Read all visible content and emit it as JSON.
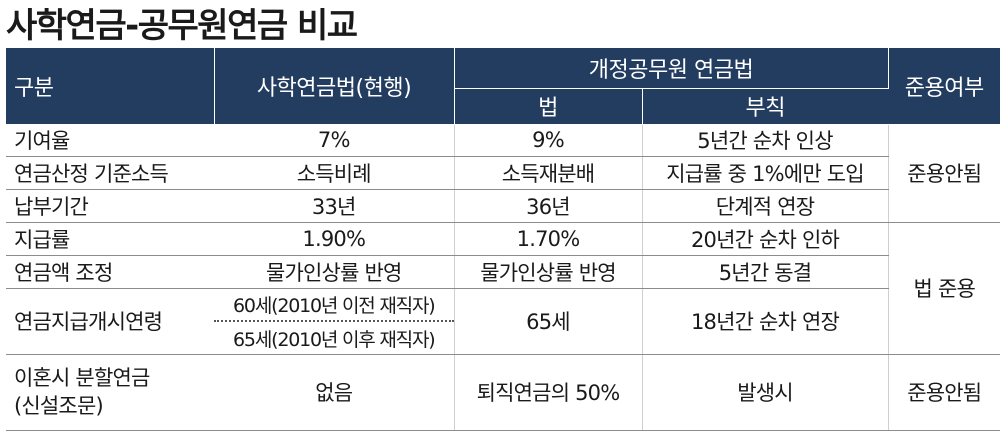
{
  "title": "사학연금-공무원연금 비교",
  "header": {
    "category": "구분",
    "private_law": "사학연금법(현행)",
    "reformed_law": "개정공무원 연금법",
    "law": "법",
    "supplementary": "부칙",
    "applicability": "준용여부"
  },
  "rows": [
    {
      "label": "기여율",
      "private": "7%",
      "law": "9%",
      "supp": "5년간 순차 인상"
    },
    {
      "label": "연금산정 기준소득",
      "private": "소득비례",
      "law": "소득재분배",
      "supp": "지급률 중 1%에만 도입"
    },
    {
      "label": "납부기간",
      "private": "33년",
      "law": "36년",
      "supp": "단계적 연장"
    },
    {
      "label": "지급률",
      "private": "1.90%",
      "law": "1.70%",
      "supp": "20년간 순차 인하"
    },
    {
      "label": "연금액 조정",
      "private": "물가인상률 반영",
      "law": "물가인상률 반영",
      "supp": "5년간 동결"
    },
    {
      "label": "연금지급개시연령",
      "private_a": "60세(2010년 이전 재직자)",
      "private_b": "65세(2010년 이후 재직자)",
      "law": "65세",
      "supp": "18년간 순차 연장"
    },
    {
      "label_1": "이혼시 분할연금",
      "label_2": "(신설조문)",
      "private": "없음",
      "law": "퇴직연금의 50%",
      "supp": "발생시"
    }
  ],
  "applicability": {
    "group1": "준용안됨",
    "group2": "법 준용",
    "group3": "준용안됨"
  },
  "colors": {
    "header_bg": "#233d61",
    "header_text": "#ffffff",
    "rule": "#8c8c8c"
  }
}
